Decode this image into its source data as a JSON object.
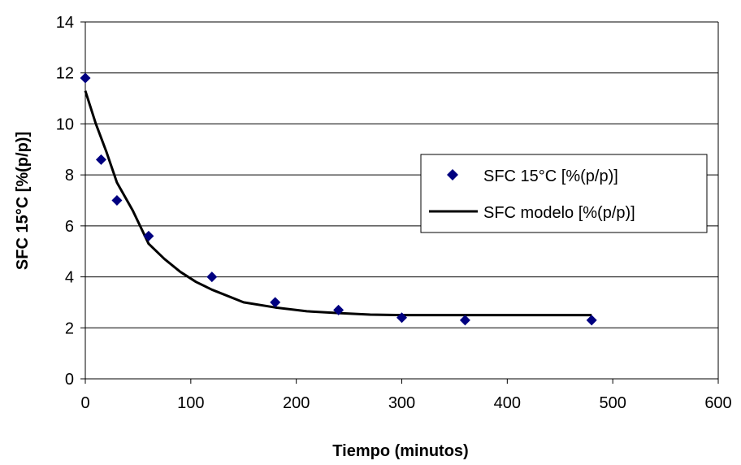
{
  "chart_data": {
    "type": "scatter",
    "xlabel": "Tiempo (minutos)",
    "ylabel": "SFC  15°C [%(p/p)]",
    "xlim": [
      0,
      600
    ],
    "ylim": [
      0,
      14
    ],
    "x_ticks": [
      0,
      100,
      200,
      300,
      400,
      500,
      600
    ],
    "y_ticks": [
      0,
      2,
      4,
      6,
      8,
      10,
      12,
      14
    ],
    "grid": "horizontal",
    "legend_position": "right",
    "series": [
      {
        "name": "SFC 15°C [%(p/p)]",
        "type": "scatter",
        "marker": "diamond",
        "color": "#000080",
        "points": [
          {
            "x": 0,
            "y": 11.8
          },
          {
            "x": 15,
            "y": 8.6
          },
          {
            "x": 30,
            "y": 7.0
          },
          {
            "x": 60,
            "y": 5.6
          },
          {
            "x": 120,
            "y": 4.0
          },
          {
            "x": 180,
            "y": 3.0
          },
          {
            "x": 240,
            "y": 2.7
          },
          {
            "x": 300,
            "y": 2.4
          },
          {
            "x": 360,
            "y": 2.3
          },
          {
            "x": 480,
            "y": 2.3
          }
        ]
      },
      {
        "name": "SFC modelo [%(p/p)]",
        "type": "line",
        "color": "#000000",
        "points": [
          {
            "x": 0,
            "y": 11.3
          },
          {
            "x": 10,
            "y": 10.0
          },
          {
            "x": 20,
            "y": 8.9
          },
          {
            "x": 30,
            "y": 7.7
          },
          {
            "x": 45,
            "y": 6.6
          },
          {
            "x": 60,
            "y": 5.3
          },
          {
            "x": 75,
            "y": 4.7
          },
          {
            "x": 90,
            "y": 4.2
          },
          {
            "x": 105,
            "y": 3.8
          },
          {
            "x": 120,
            "y": 3.5
          },
          {
            "x": 150,
            "y": 3.0
          },
          {
            "x": 180,
            "y": 2.8
          },
          {
            "x": 210,
            "y": 2.65
          },
          {
            "x": 240,
            "y": 2.58
          },
          {
            "x": 270,
            "y": 2.52
          },
          {
            "x": 300,
            "y": 2.5
          },
          {
            "x": 360,
            "y": 2.5
          },
          {
            "x": 420,
            "y": 2.5
          },
          {
            "x": 480,
            "y": 2.5
          }
        ]
      }
    ]
  }
}
